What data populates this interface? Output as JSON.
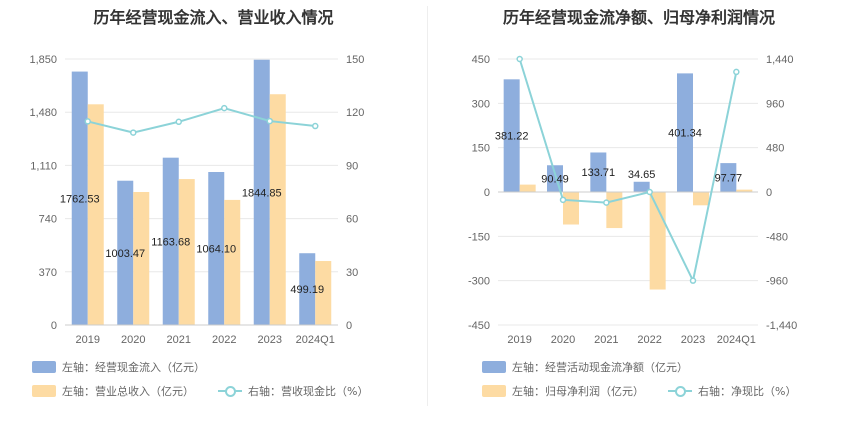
{
  "colors": {
    "bar1": "#8eaedd",
    "bar2": "#fddba3",
    "line": "#8cd3d8",
    "grid": "#e8e8e8"
  },
  "chart_data": [
    {
      "type": "bar",
      "title": "历年经营现金流入、营业收入情况",
      "categories": [
        "2019",
        "2020",
        "2021",
        "2022",
        "2023",
        "2024Q1"
      ],
      "y_left": {
        "ticks": [
          "0",
          "370",
          "740",
          "1,110",
          "1,480",
          "1,850"
        ],
        "range": [
          0,
          1850
        ]
      },
      "y_right": {
        "ticks": [
          "0",
          "30",
          "60",
          "90",
          "120",
          "150"
        ],
        "range": [
          0,
          150
        ]
      },
      "series": [
        {
          "name": "左轴：经营现金流入（亿元）",
          "axis": "left",
          "values": [
            1762.53,
            1003.47,
            1163.68,
            1064.1,
            1844.85,
            499.19
          ],
          "labels": [
            "1762.53",
            "1003.47",
            "1163.68",
            "1064.10",
            "1844.85",
            "499.19"
          ]
        },
        {
          "name": "左轴：营业总收入（亿元）",
          "axis": "left",
          "values": [
            1535,
            925,
            1015,
            870,
            1605,
            445
          ]
        },
        {
          "name": "右轴：营收现金比（%）",
          "axis": "right",
          "type": "line",
          "values": [
            114.8,
            108.5,
            114.6,
            122.3,
            115.0,
            112.2
          ]
        }
      ]
    },
    {
      "type": "bar",
      "title": "历年经营现金流净额、归母净利润情况",
      "categories": [
        "2019",
        "2020",
        "2021",
        "2022",
        "2023",
        "2024Q1"
      ],
      "y_left": {
        "ticks": [
          "-450",
          "-300",
          "-150",
          "0",
          "150",
          "300",
          "450"
        ],
        "range": [
          -450,
          450
        ]
      },
      "y_right": {
        "ticks": [
          "-1,440",
          "-960",
          "-480",
          "0",
          "480",
          "960",
          "1,440"
        ],
        "range": [
          -1440,
          1440
        ]
      },
      "series": [
        {
          "name": "左轴：经营活动现金流净额（亿元）",
          "axis": "left",
          "values": [
            381.22,
            90.49,
            133.71,
            34.65,
            401.34,
            97.77
          ],
          "labels": [
            "381.22",
            "90.49",
            "133.71",
            "34.65",
            "401.34",
            "97.77"
          ]
        },
        {
          "name": "左轴：归母净利润（亿元）",
          "axis": "left",
          "values": [
            25,
            -110,
            -122,
            -330,
            -45,
            8
          ]
        },
        {
          "name": "右轴：净现比（%）",
          "axis": "right",
          "type": "line",
          "values": [
            1440,
            -85,
            -115,
            0,
            -960,
            1300
          ]
        }
      ]
    }
  ]
}
